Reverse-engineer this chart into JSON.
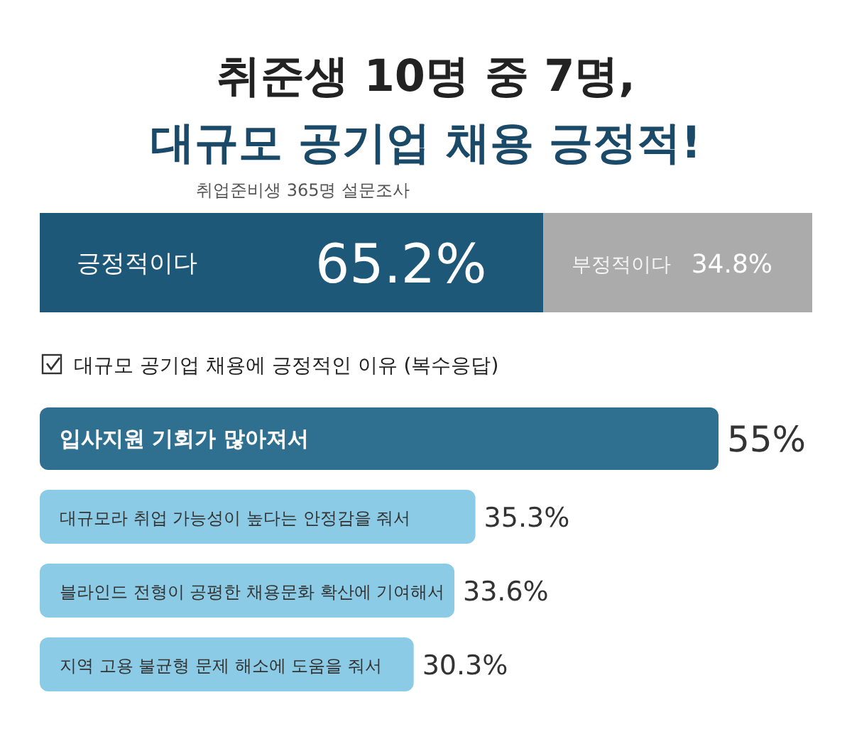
{
  "chart_data": [
    {
      "type": "bar",
      "orientation": "horizontal",
      "stacked": true,
      "title": "취준생 10명 중 7명,\n대규모 공기업 채용 긍정적!",
      "subtitle": "취업준비생 365명 설문조사",
      "categories": [
        null
      ],
      "series": [
        {
          "name": "긍정적이다",
          "color": "#1d5878",
          "values": [
            65.2
          ],
          "value_labels": [
            "65.2%"
          ]
        },
        {
          "name": "부정적이다",
          "color": "#ababab",
          "values": [
            34.8
          ],
          "value_labels": [
            "34.8%"
          ]
        }
      ]
    },
    {
      "type": "bar",
      "orientation": "horizontal",
      "title": "대규모 공기업 채용에 긍정적인 이유 (복수응답)",
      "categories": [
        "입사지원 기회가 많아져서",
        "대규모라  취업 가능성이 높다는 안정감을 줘서",
        "블라인드 전형이 공평한 채용문화 확산에 기여해서",
        "지역 고용 불균형 문제 해소에 도움을 줘서"
      ],
      "values": [
        55,
        35.3,
        33.6,
        30.3
      ],
      "colors": [
        "#2f7090",
        "#8ccbe5",
        "#8ccbe5",
        "#8ccbe5"
      ],
      "value_labels": [
        "55%",
        "35.3%",
        "33.6%",
        "30.3%"
      ]
    }
  ]
}
